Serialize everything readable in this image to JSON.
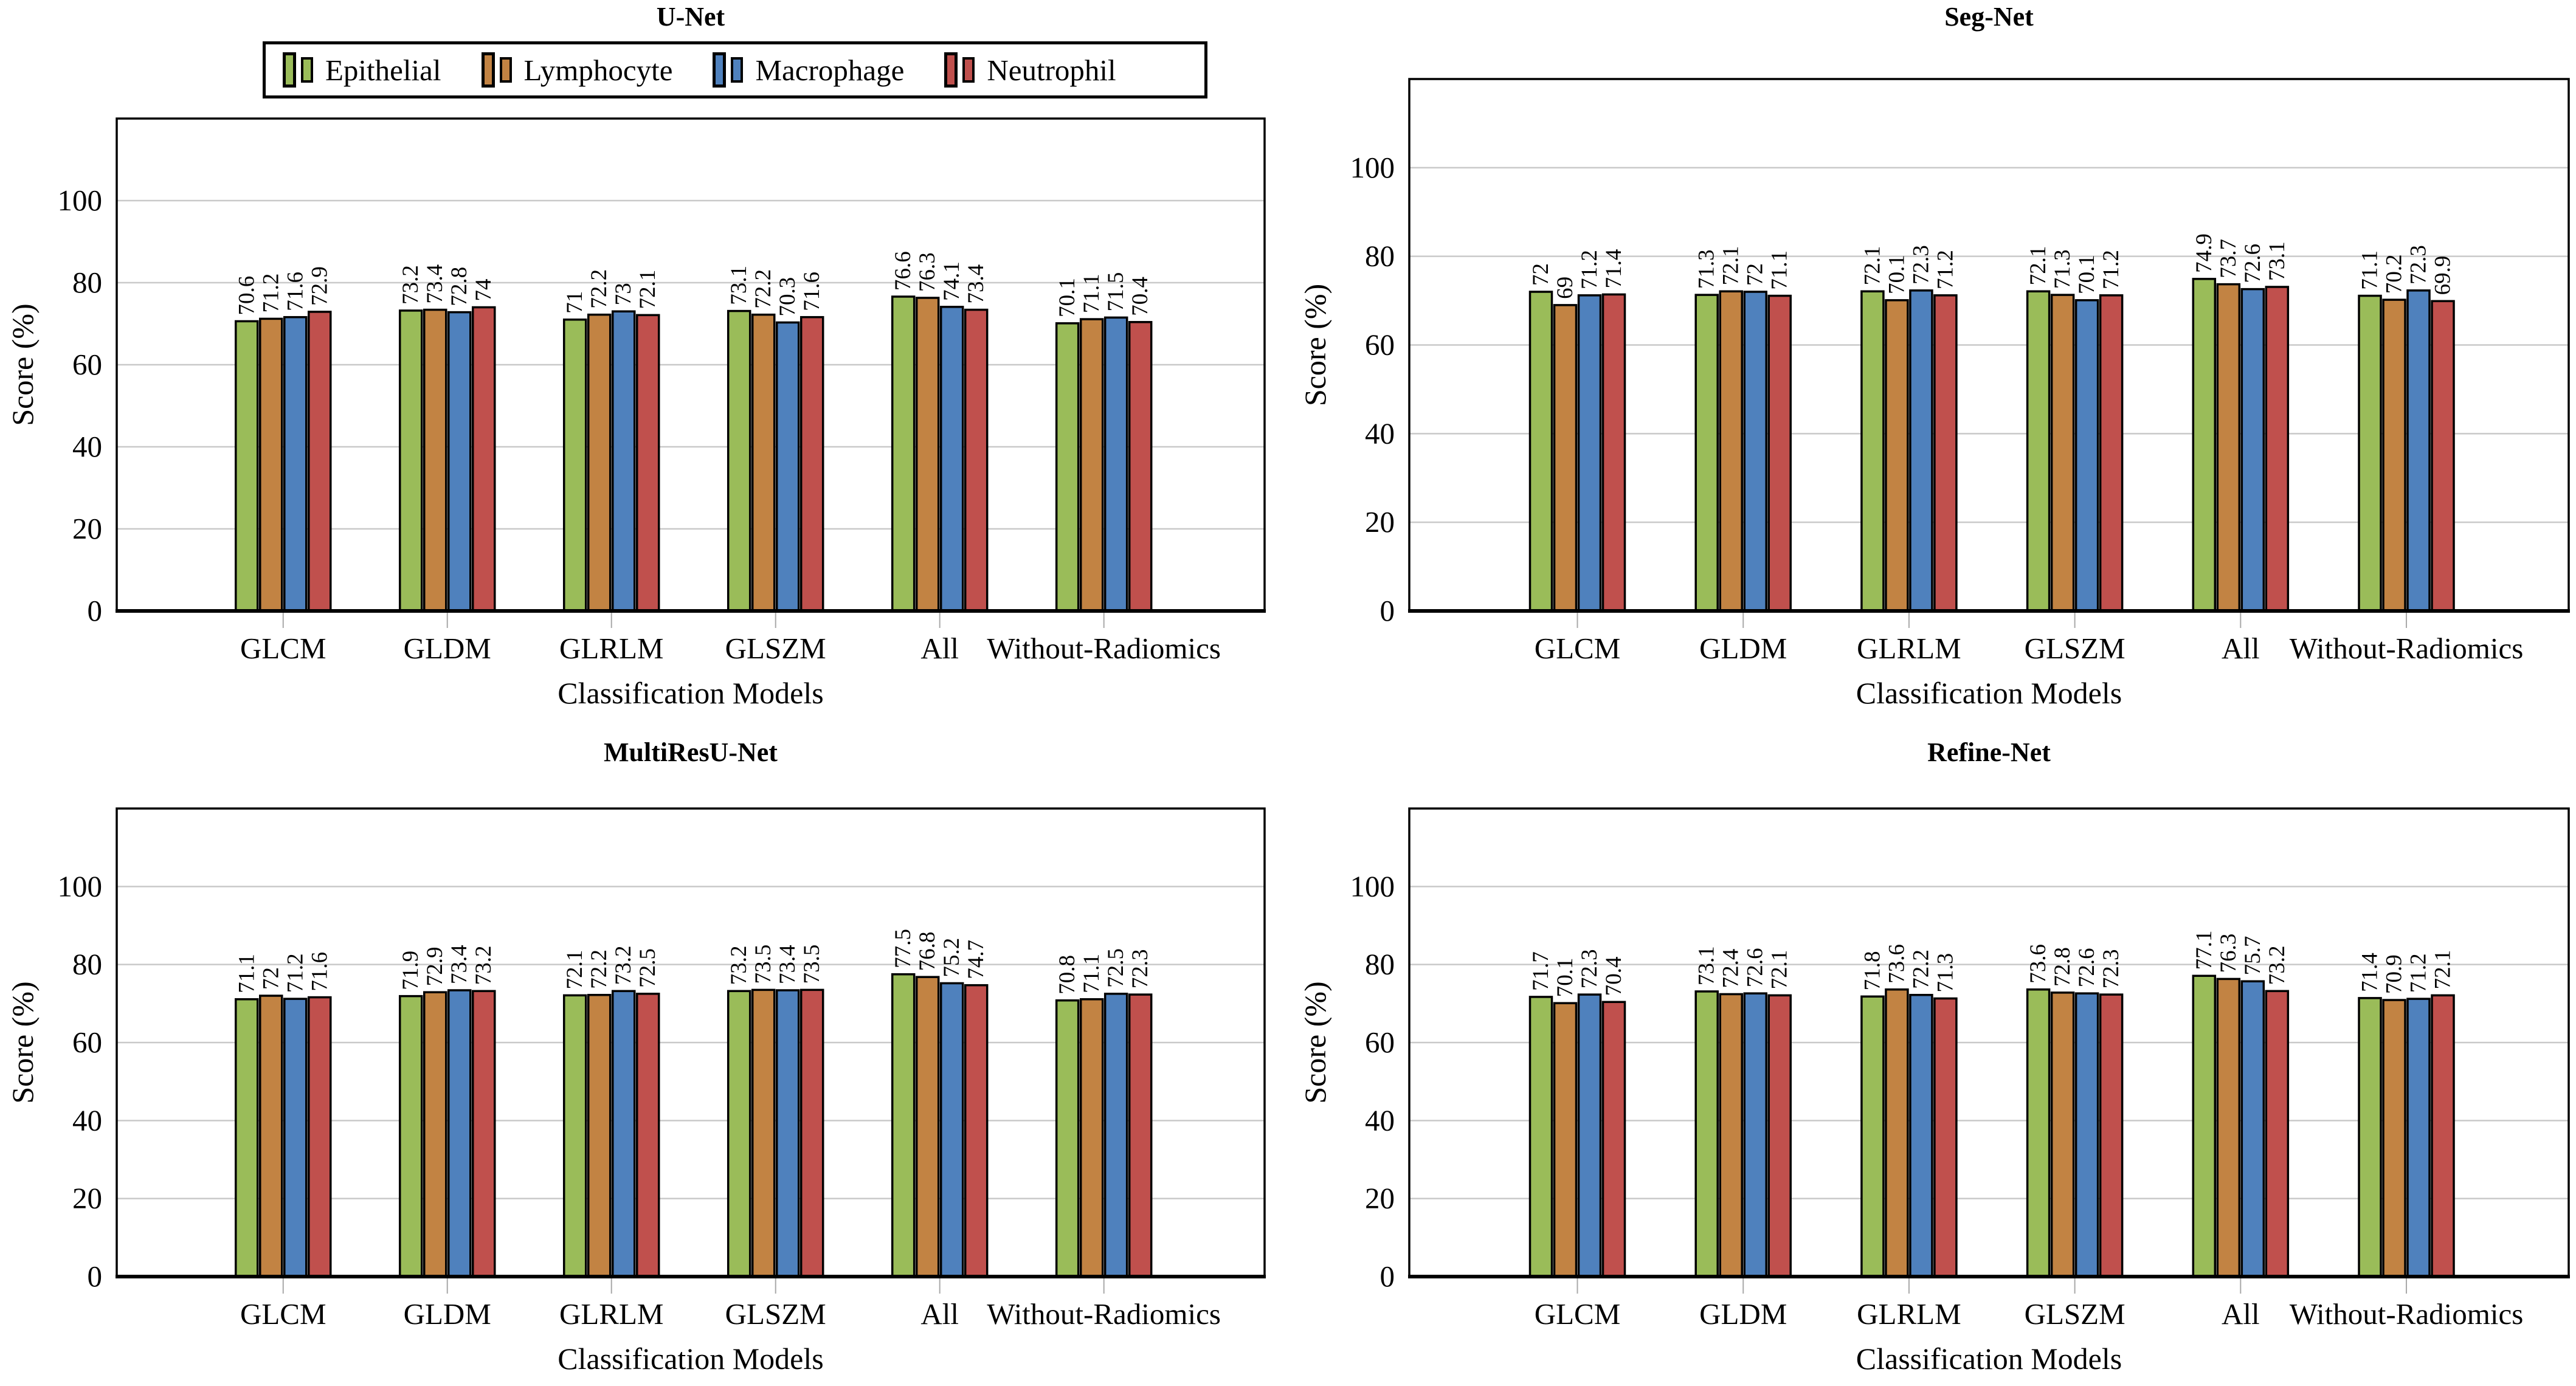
{
  "figure": {
    "background": "#ffffff",
    "grid_color": "#c9c9c9",
    "tick_color": "#a9a9a9",
    "axis_color": "#000000"
  },
  "legend": {
    "position": "top-left of U-Net panel",
    "items": [
      {
        "label": "Epithelial",
        "color": "#9abc59"
      },
      {
        "label": "Lymphocyte",
        "color": "#c28343"
      },
      {
        "label": "Macrophage",
        "color": "#4f81bd"
      },
      {
        "label": "Neutrophil",
        "color": "#c0504d"
      }
    ]
  },
  "chart_data": [
    {
      "type": "bar",
      "title": "U-Net",
      "xlabel": "Classification Models",
      "ylabel": "Score (%)",
      "ylim": [
        0,
        120
      ],
      "yticks": [
        0,
        20,
        40,
        60,
        80,
        100
      ],
      "grid": "horizontal",
      "legend_position": "top-left outside plot",
      "categories": [
        "GLCM",
        "GLDM",
        "GLRLM",
        "GLSZM",
        "All",
        "Without-Radiomics"
      ],
      "series": [
        {
          "name": "Epithelial",
          "color": "#9abc59",
          "values": [
            "70.6",
            "73.2",
            "71",
            "73.1",
            "76.6",
            "70.1"
          ]
        },
        {
          "name": "Lymphocyte",
          "color": "#c28343",
          "values": [
            "71.2",
            "73.4",
            "72.2",
            "72.2",
            "76.3",
            "71.1"
          ]
        },
        {
          "name": "Macrophage",
          "color": "#4f81bd",
          "values": [
            "71.6",
            "72.8",
            "73",
            "70.3",
            "74.1",
            "71.5"
          ]
        },
        {
          "name": "Neutrophil",
          "color": "#c0504d",
          "values": [
            "72.9",
            "74",
            "72.1",
            "71.6",
            "73.4",
            "70.4"
          ]
        }
      ]
    },
    {
      "type": "bar",
      "title": "Seg-Net",
      "xlabel": "Classification Models",
      "ylabel": "Score (%)",
      "ylim": [
        0,
        120
      ],
      "yticks": [
        0,
        20,
        40,
        60,
        80,
        100
      ],
      "grid": "horizontal",
      "categories": [
        "GLCM",
        "GLDM",
        "GLRLM",
        "GLSZM",
        "All",
        "Without-Radiomics"
      ],
      "series": [
        {
          "name": "Epithelial",
          "color": "#9abc59",
          "values": [
            "72",
            "71.3",
            "72.1",
            "72.1",
            "74.9",
            "71.1"
          ]
        },
        {
          "name": "Lymphocyte",
          "color": "#c28343",
          "values": [
            "69",
            "72.1",
            "70.1",
            "71.3",
            "73.7",
            "70.2"
          ]
        },
        {
          "name": "Macrophage",
          "color": "#4f81bd",
          "values": [
            "71.2",
            "72",
            "72.3",
            "70.1",
            "72.6",
            "72.3"
          ]
        },
        {
          "name": "Neutrophil",
          "color": "#c0504d",
          "values": [
            "71.4",
            "71.1",
            "71.2",
            "71.2",
            "73.1",
            "69.9"
          ]
        }
      ]
    },
    {
      "type": "bar",
      "title": "MultiResU-Net",
      "xlabel": "Classification Models",
      "ylabel": "Score (%)",
      "ylim": [
        0,
        120
      ],
      "yticks": [
        0,
        20,
        40,
        60,
        80,
        100
      ],
      "grid": "horizontal",
      "categories": [
        "GLCM",
        "GLDM",
        "GLRLM",
        "GLSZM",
        "All",
        "Without-Radiomics"
      ],
      "series": [
        {
          "name": "Epithelial",
          "color": "#9abc59",
          "values": [
            "71.1",
            "71.9",
            "72.1",
            "73.2",
            "77.5",
            "70.8"
          ]
        },
        {
          "name": "Lymphocyte",
          "color": "#c28343",
          "values": [
            "72",
            "72.9",
            "72.2",
            "73.5",
            "76.8",
            "71.1"
          ]
        },
        {
          "name": "Macrophage",
          "color": "#4f81bd",
          "values": [
            "71.2",
            "73.4",
            "73.2",
            "73.4",
            "75.2",
            "72.5"
          ]
        },
        {
          "name": "Neutrophil",
          "color": "#c0504d",
          "values": [
            "71.6",
            "73.2",
            "72.5",
            "73.5",
            "74.7",
            "72.3"
          ]
        }
      ]
    },
    {
      "type": "bar",
      "title": "Refine-Net",
      "xlabel": "Classification Models",
      "ylabel": "Score (%)",
      "ylim": [
        0,
        120
      ],
      "yticks": [
        0,
        20,
        40,
        60,
        80,
        100
      ],
      "grid": "horizontal",
      "categories": [
        "GLCM",
        "GLDM",
        "GLRLM",
        "GLSZM",
        "All",
        "Without-Radiomics"
      ],
      "series": [
        {
          "name": "Epithelial",
          "color": "#9abc59",
          "values": [
            "71.7",
            "73.1",
            "71.8",
            "73.6",
            "77.1",
            "71.4"
          ]
        },
        {
          "name": "Lymphocyte",
          "color": "#c28343",
          "values": [
            "70.1",
            "72.4",
            "73.6",
            "72.8",
            "76.3",
            "70.9"
          ]
        },
        {
          "name": "Macrophage",
          "color": "#4f81bd",
          "values": [
            "72.3",
            "72.6",
            "72.2",
            "72.6",
            "75.7",
            "71.2"
          ]
        },
        {
          "name": "Neutrophil",
          "color": "#c0504d",
          "values": [
            "70.4",
            "72.1",
            "71.3",
            "72.3",
            "73.2",
            "72.1"
          ]
        }
      ]
    }
  ]
}
